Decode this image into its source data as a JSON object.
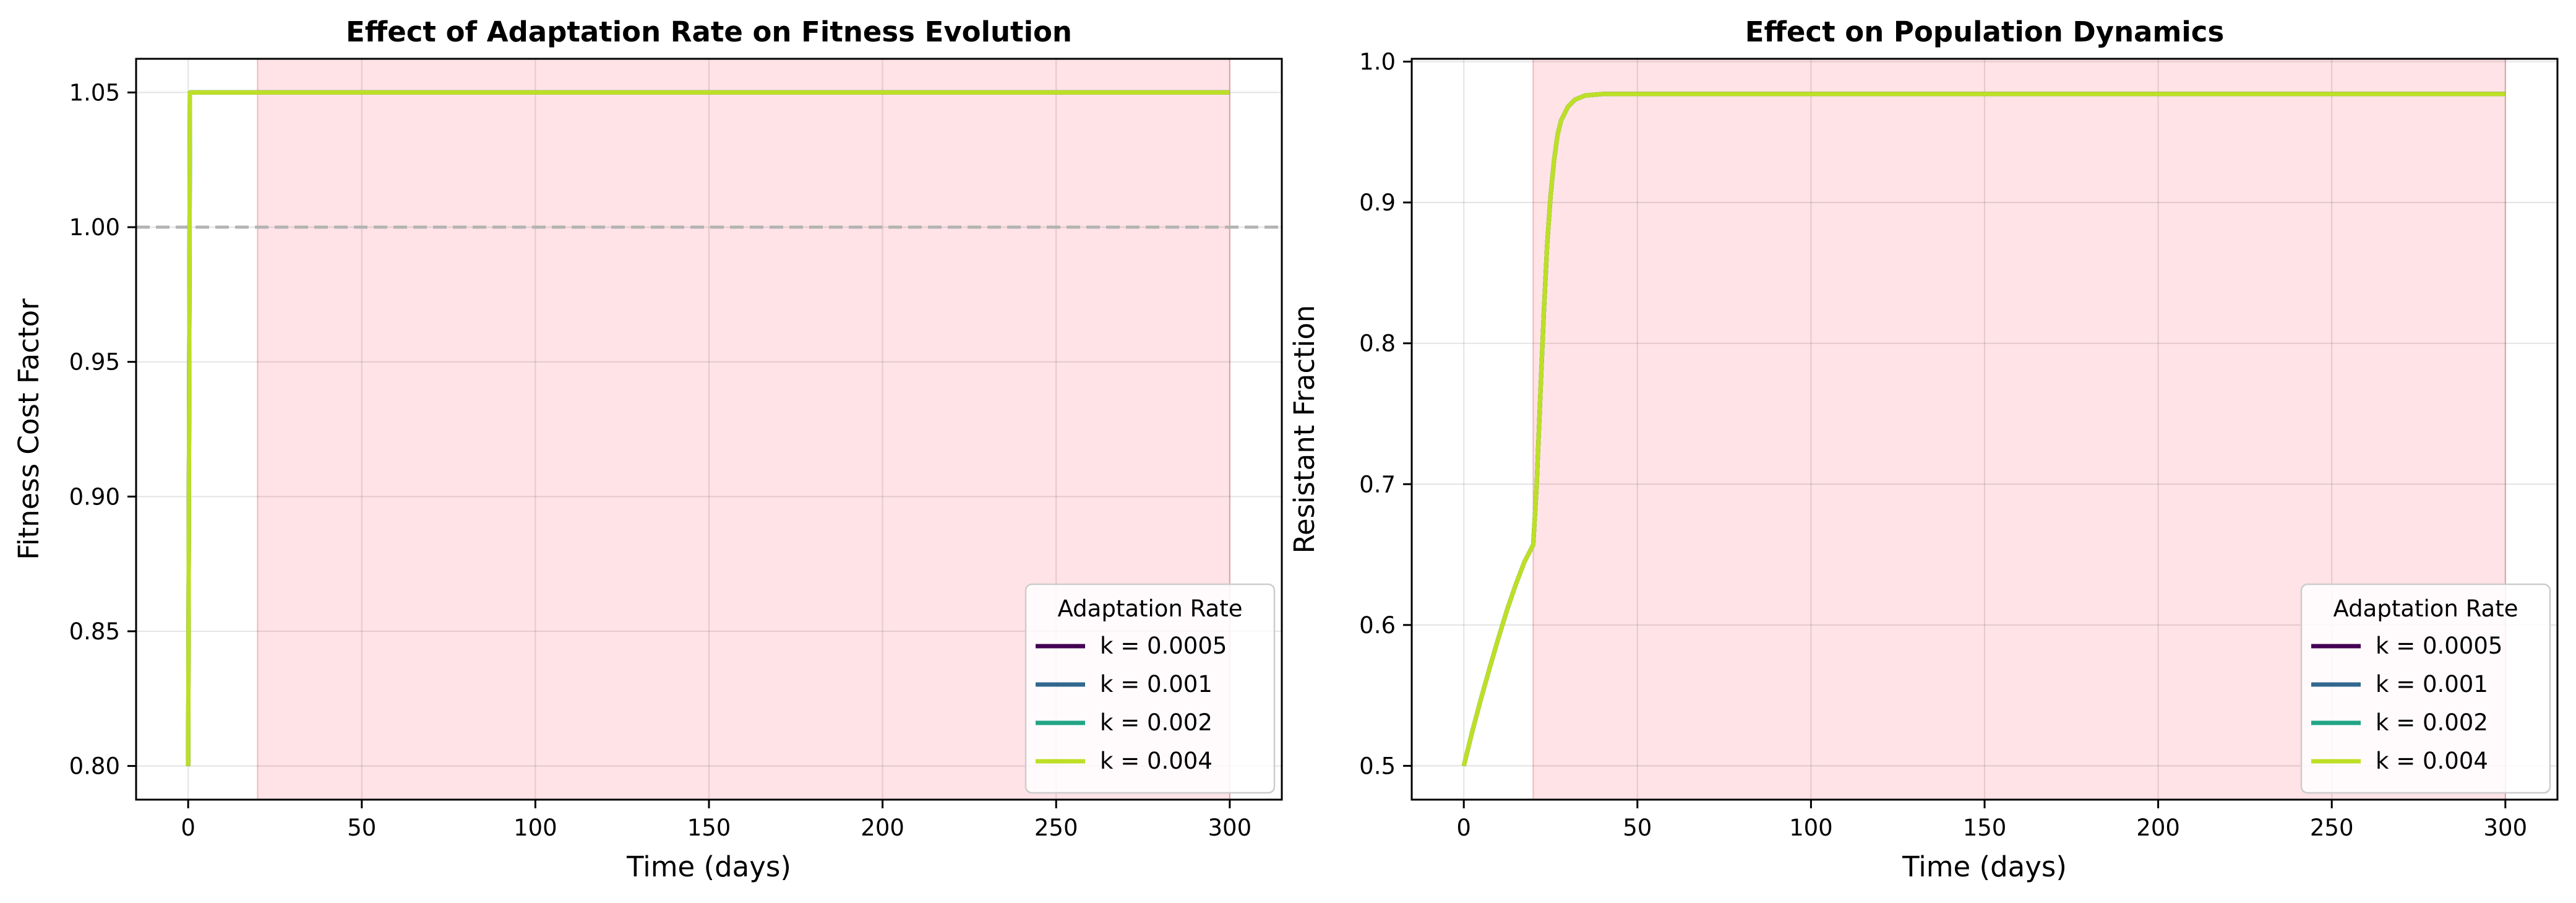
{
  "chart_data": [
    {
      "type": "line",
      "title": "Effect of Adaptation Rate on Fitness Evolution",
      "xlabel": "Time (days)",
      "ylabel": "Fitness Cost Factor",
      "xlim": [
        -15,
        315
      ],
      "ylim": [
        0.7875,
        1.0625
      ],
      "xticks": [
        0,
        50,
        100,
        150,
        200,
        250,
        300
      ],
      "yticks": [
        0.8,
        0.85,
        0.9,
        0.95,
        1.0,
        1.05
      ],
      "ytick_decimals": 2,
      "grid": true,
      "reference_line": {
        "y": 1.0,
        "style": "dashed",
        "color": "#b3b3b3"
      },
      "shaded_region": {
        "x": [
          20,
          300
        ],
        "color": "#ffe3e6"
      },
      "legend": {
        "title": "Adaptation Rate",
        "placement": "lower-right"
      },
      "series": [
        {
          "name": "k = 0.0005",
          "color": "#440154",
          "x": [
            0,
            0.5,
            300
          ],
          "y": [
            0.8,
            1.05,
            1.05
          ]
        },
        {
          "name": "k = 0.001",
          "color": "#31688e",
          "x": [
            0,
            0.5,
            300
          ],
          "y": [
            0.8,
            1.05,
            1.05
          ]
        },
        {
          "name": "k = 0.002",
          "color": "#21a585",
          "x": [
            0,
            0.5,
            300
          ],
          "y": [
            0.8,
            1.05,
            1.05
          ]
        },
        {
          "name": "k = 0.004",
          "color": "#bddf26",
          "x": [
            0,
            0.5,
            300
          ],
          "y": [
            0.8,
            1.05,
            1.05
          ]
        }
      ]
    },
    {
      "type": "line",
      "title": "Effect on Population Dynamics",
      "xlabel": "Time (days)",
      "ylabel": "Resistant Fraction",
      "xlim": [
        -15,
        315
      ],
      "ylim": [
        0.476,
        1.002
      ],
      "xticks": [
        0,
        50,
        100,
        150,
        200,
        250,
        300
      ],
      "yticks": [
        0.5,
        0.6,
        0.7,
        0.8,
        0.9,
        1.0
      ],
      "ytick_decimals": 1,
      "grid": true,
      "shaded_region": {
        "x": [
          20,
          300
        ],
        "color": "#ffe3e6"
      },
      "legend": {
        "title": "Adaptation Rate",
        "placement": "lower-right"
      },
      "series": [
        {
          "name": "k = 0.0005",
          "color": "#440154",
          "x": [
            0,
            2.5,
            5,
            7.5,
            10,
            12.5,
            15,
            17.5,
            20,
            21,
            22,
            23,
            24,
            25,
            26,
            27,
            28,
            30,
            32,
            35,
            40,
            50,
            100,
            300
          ],
          "y": [
            0.5,
            0.525,
            0.548,
            0.57,
            0.591,
            0.611,
            0.629,
            0.645,
            0.657,
            0.7,
            0.76,
            0.82,
            0.87,
            0.905,
            0.93,
            0.948,
            0.958,
            0.968,
            0.973,
            0.976,
            0.977,
            0.977,
            0.977,
            0.977
          ]
        },
        {
          "name": "k = 0.001",
          "color": "#31688e",
          "x": [
            0,
            2.5,
            5,
            7.5,
            10,
            12.5,
            15,
            17.5,
            20,
            21,
            22,
            23,
            24,
            25,
            26,
            27,
            28,
            30,
            32,
            35,
            40,
            50,
            100,
            300
          ],
          "y": [
            0.5,
            0.525,
            0.548,
            0.57,
            0.591,
            0.611,
            0.629,
            0.645,
            0.657,
            0.7,
            0.76,
            0.82,
            0.87,
            0.905,
            0.93,
            0.948,
            0.958,
            0.968,
            0.973,
            0.976,
            0.977,
            0.977,
            0.977,
            0.977
          ]
        },
        {
          "name": "k = 0.002",
          "color": "#21a585",
          "x": [
            0,
            2.5,
            5,
            7.5,
            10,
            12.5,
            15,
            17.5,
            20,
            21,
            22,
            23,
            24,
            25,
            26,
            27,
            28,
            30,
            32,
            35,
            40,
            50,
            100,
            300
          ],
          "y": [
            0.5,
            0.525,
            0.548,
            0.57,
            0.591,
            0.611,
            0.629,
            0.645,
            0.657,
            0.7,
            0.76,
            0.82,
            0.87,
            0.905,
            0.93,
            0.948,
            0.958,
            0.968,
            0.973,
            0.976,
            0.977,
            0.977,
            0.977,
            0.977
          ]
        },
        {
          "name": "k = 0.004",
          "color": "#bddf26",
          "x": [
            0,
            2.5,
            5,
            7.5,
            10,
            12.5,
            15,
            17.5,
            20,
            21,
            22,
            23,
            24,
            25,
            26,
            27,
            28,
            30,
            32,
            35,
            40,
            50,
            100,
            300
          ],
          "y": [
            0.5,
            0.525,
            0.548,
            0.57,
            0.591,
            0.611,
            0.629,
            0.645,
            0.657,
            0.7,
            0.76,
            0.82,
            0.87,
            0.905,
            0.93,
            0.948,
            0.958,
            0.968,
            0.973,
            0.976,
            0.977,
            0.977,
            0.977,
            0.977
          ]
        }
      ]
    }
  ]
}
